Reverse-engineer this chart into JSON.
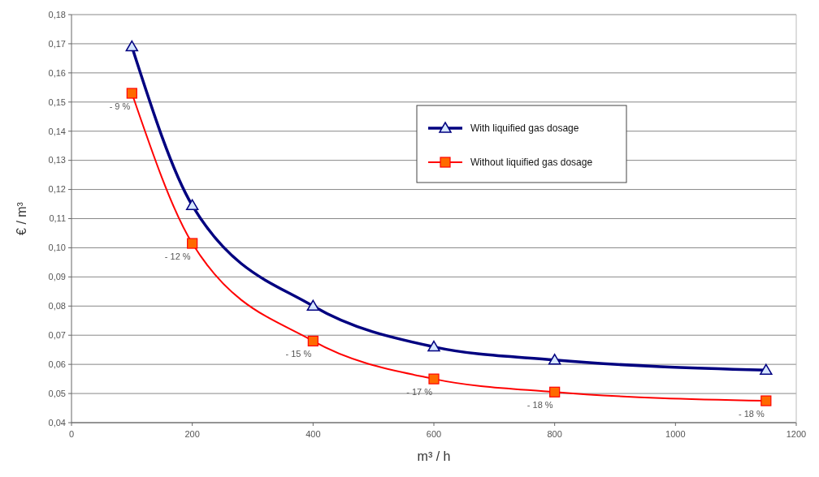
{
  "chart_data": {
    "type": "line",
    "xlabel": "m³ / h",
    "ylabel": "€ / m³",
    "xlim": [
      0,
      1200
    ],
    "xticks": [
      0,
      200,
      400,
      600,
      800,
      1000,
      1200
    ],
    "ylim": [
      0.04,
      0.18
    ],
    "yticks": [
      {
        "value": 0.04,
        "label": "0,04"
      },
      {
        "value": 0.05,
        "label": "0,05"
      },
      {
        "value": 0.06,
        "label": "0,06"
      },
      {
        "value": 0.07,
        "label": "0,07"
      },
      {
        "value": 0.08,
        "label": "0,08"
      },
      {
        "value": 0.09,
        "label": "0,09"
      },
      {
        "value": 0.1,
        "label": "0,10"
      },
      {
        "value": 0.11,
        "label": "0,11"
      },
      {
        "value": 0.12,
        "label": "0,12"
      },
      {
        "value": 0.13,
        "label": "0,13"
      },
      {
        "value": 0.14,
        "label": "0,14"
      },
      {
        "value": 0.15,
        "label": "0,15"
      },
      {
        "value": 0.16,
        "label": "0,16"
      },
      {
        "value": 0.17,
        "label": "0,17"
      },
      {
        "value": 0.18,
        "label": "0,18"
      }
    ],
    "x": [
      100,
      200,
      400,
      600,
      800,
      1150
    ],
    "series": [
      {
        "name": "With liquified gas dosage",
        "color": "#000080",
        "marker": "triangle",
        "values": [
          0.169,
          0.1145,
          0.08,
          0.066,
          0.0615,
          0.058
        ]
      },
      {
        "name": "Without liquified gas dosage",
        "color": "#ff0000",
        "marker": "square",
        "values": [
          0.153,
          0.1015,
          0.068,
          0.055,
          0.0505,
          0.0475
        ]
      }
    ],
    "annotations": [
      {
        "text": "- 9 %",
        "x": 100,
        "y": 0.153
      },
      {
        "text": "- 12 %",
        "x": 200,
        "y": 0.1015
      },
      {
        "text": "- 15 %",
        "x": 400,
        "y": 0.068
      },
      {
        "text": "- 17 %",
        "x": 600,
        "y": 0.055
      },
      {
        "text": "- 18 %",
        "x": 800,
        "y": 0.0505
      },
      {
        "text": "- 18 %",
        "x": 1150,
        "y": 0.0475
      }
    ],
    "grid": "y",
    "legend": "top right"
  }
}
